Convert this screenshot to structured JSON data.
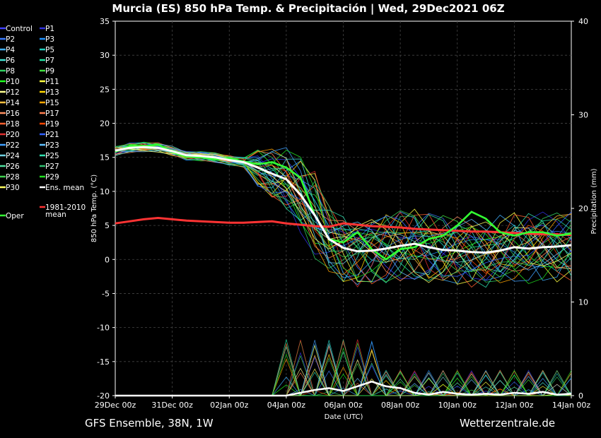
{
  "chart_data": {
    "type": "line",
    "title": "Murcia  (ES)  850 hPa Temp. & Precipitación | Wed, 29Dec2021 06Z",
    "xlabel": "Date (UTC)",
    "ylabel": "850 hPa Temp. (°C)",
    "y2label": "Precipitation (mm)",
    "ylim": [
      -20,
      35
    ],
    "y2lim": [
      0,
      40
    ],
    "xlim_days": [
      0,
      16
    ],
    "y_ticks": [
      "35",
      "30",
      "25",
      "20",
      "15",
      "10",
      "5",
      "0",
      "-5",
      "-10",
      "-15",
      "-20"
    ],
    "y2_ticks": [
      "40",
      "30",
      "20",
      "10",
      "0"
    ],
    "x_ticks": [
      "29Dec 00z",
      "31Dec 00z",
      "02Jan 00z",
      "04Jan 00z",
      "06Jan 00z",
      "08Jan 00z",
      "10Jan 00z",
      "12Jan 00z",
      "14Jan 00z"
    ],
    "grid": true,
    "legend_position": "left",
    "footer_left": "GFS Ensemble, 38N, 1W",
    "footer_right": "Wetterzentrale.de",
    "legend": [
      {
        "label": "Control",
        "color": "#4040ff"
      },
      {
        "label": "P1",
        "color": "#3030e0"
      },
      {
        "label": "P2",
        "color": "#3a7bff"
      },
      {
        "label": "P3",
        "color": "#1e90ff"
      },
      {
        "label": "P4",
        "color": "#40b0ff"
      },
      {
        "label": "P5",
        "color": "#20d0c0"
      },
      {
        "label": "P6",
        "color": "#40e0d0"
      },
      {
        "label": "P7",
        "color": "#20e0a0"
      },
      {
        "label": "P8",
        "color": "#30d060"
      },
      {
        "label": "P9",
        "color": "#40e040"
      },
      {
        "label": "P10",
        "color": "#20ff20"
      },
      {
        "label": "P11",
        "color": "#ffff40"
      },
      {
        "label": "P12",
        "color": "#ffff90"
      },
      {
        "label": "P13",
        "color": "#ffd700"
      },
      {
        "label": "P14",
        "color": "#ffc040"
      },
      {
        "label": "P15",
        "color": "#ffa500"
      },
      {
        "label": "P16",
        "color": "#ff9060"
      },
      {
        "label": "P17",
        "color": "#ff7f50"
      },
      {
        "label": "P18",
        "color": "#ff6030"
      },
      {
        "label": "P19",
        "color": "#ff4500"
      },
      {
        "label": "P20",
        "color": "#e03030"
      },
      {
        "label": "P21",
        "color": "#3060ff"
      },
      {
        "label": "P22",
        "color": "#40a0ff"
      },
      {
        "label": "P23",
        "color": "#60c0ff"
      },
      {
        "label": "P24",
        "color": "#70d0e0"
      },
      {
        "label": "P25",
        "color": "#30e0b0"
      },
      {
        "label": "P26",
        "color": "#50e0a0"
      },
      {
        "label": "P27",
        "color": "#30c070"
      },
      {
        "label": "P28",
        "color": "#40d050"
      },
      {
        "label": "P29",
        "color": "#20e020"
      },
      {
        "label": "P30",
        "color": "#ffff60"
      },
      {
        "label": "Ens. mean",
        "color": "#ffffff"
      },
      {
        "label": "1981-2010 mean",
        "color": "#ff3333"
      },
      {
        "label": "Oper",
        "color": "#33ff33"
      }
    ],
    "ens_mean": {
      "x": [
        0,
        0.5,
        1,
        1.5,
        2,
        2.5,
        3,
        3.5,
        4,
        4.5,
        5,
        5.5,
        6,
        6.5,
        7,
        7.5,
        8,
        8.5,
        9,
        9.5,
        10,
        10.5,
        11,
        11.5,
        12,
        12.5,
        13,
        13.5,
        14,
        14.5,
        15,
        15.5,
        16
      ],
      "y": [
        16,
        16.4,
        16.5,
        16.4,
        15.9,
        15.3,
        15.2,
        15,
        14.6,
        14.3,
        13.5,
        12.6,
        11.8,
        9.5,
        6.5,
        3,
        1.7,
        1.2,
        1.3,
        1.6,
        2,
        2.3,
        1.8,
        1.4,
        1.3,
        1.1,
        1,
        1.3,
        1.8,
        1.6,
        1.8,
        1.9,
        2.1
      ]
    },
    "clim_mean": {
      "x": [
        0,
        0.5,
        1,
        1.5,
        2,
        2.5,
        3,
        3.5,
        4,
        4.5,
        5,
        5.5,
        6,
        6.5,
        7,
        7.5,
        8,
        8.5,
        9,
        9.5,
        10,
        10.5,
        11,
        11.5,
        12,
        12.5,
        13,
        13.5,
        14,
        14.5,
        15,
        15.5,
        16
      ],
      "y": [
        5.3,
        5.6,
        5.9,
        6.1,
        5.9,
        5.7,
        5.6,
        5.5,
        5.4,
        5.4,
        5.5,
        5.6,
        5.3,
        5.1,
        4.9,
        4.8,
        5.3,
        5.1,
        4.9,
        4.8,
        4.7,
        4.5,
        4.4,
        4.3,
        4.2,
        4.1,
        4.1,
        4.0,
        3.9,
        3.8,
        3.7,
        3.7,
        3.6
      ]
    },
    "oper": {
      "x": [
        0,
        0.5,
        1,
        1.5,
        2,
        2.5,
        3,
        3.5,
        4,
        4.5,
        5,
        5.5,
        6,
        6.5,
        7,
        7.5,
        8,
        8.5,
        9,
        9.5,
        10,
        10.5,
        11,
        11.5,
        12,
        12.5,
        13,
        13.5,
        14,
        14.5,
        15,
        15.5,
        16
      ],
      "y": [
        15.8,
        16.7,
        16.6,
        16.9,
        15.8,
        15.1,
        15,
        14.7,
        14.9,
        14.4,
        14,
        14.3,
        13.5,
        12,
        6.5,
        3,
        2.5,
        4,
        1.5,
        0,
        1.5,
        1.8,
        3,
        3.5,
        5,
        7,
        6,
        4,
        3.5,
        4,
        4,
        3.5,
        3.8
      ]
    },
    "ens_precip_mean": {
      "x": [
        0,
        1,
        2,
        3,
        4,
        5,
        6,
        6.5,
        7,
        7.5,
        8,
        8.5,
        9,
        9.5,
        10,
        10.5,
        11,
        11.5,
        12,
        12.5,
        13,
        13.5,
        14,
        14.5,
        15,
        15.5,
        16
      ],
      "y": [
        0,
        0,
        0,
        0,
        0,
        0,
        0,
        0.3,
        0.6,
        0.8,
        0.5,
        1,
        1.5,
        1,
        0.8,
        0.3,
        0.1,
        0.4,
        0.2,
        0.1,
        0.2,
        0.1,
        0.3,
        0.2,
        0.4,
        0.1,
        0.2
      ]
    }
  }
}
